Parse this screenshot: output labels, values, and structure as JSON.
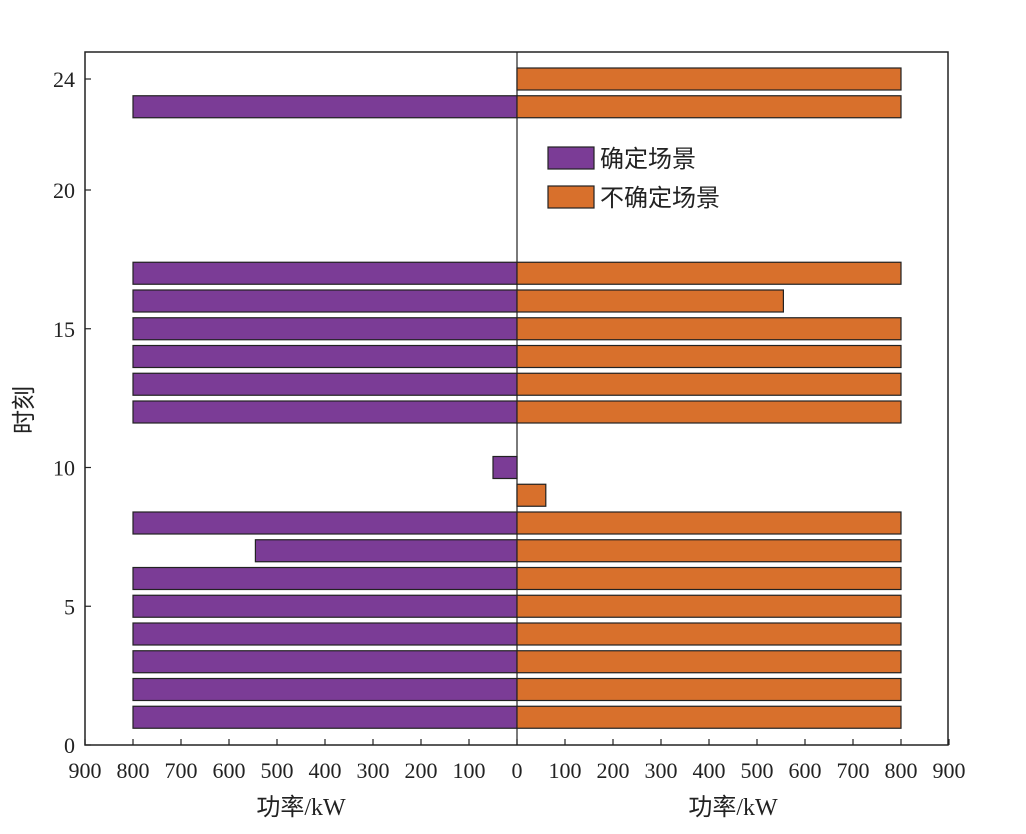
{
  "chart_data": {
    "type": "bar",
    "orientation": "horizontal-diverging",
    "xlabel_left": "功率/kW",
    "xlabel_right": "功率/kW",
    "ylabel": "时刻",
    "xlim_each_side": [
      0,
      900
    ],
    "ylim": [
      0,
      24.5
    ],
    "x_ticks_left": [
      "900",
      "800",
      "700",
      "600",
      "500",
      "400",
      "300",
      "200",
      "100",
      "0"
    ],
    "x_ticks_right": [
      "100",
      "200",
      "300",
      "400",
      "500",
      "600",
      "700",
      "800",
      "900"
    ],
    "y_ticks": [
      0,
      5,
      10,
      15,
      20,
      24
    ],
    "legend_position": "upper-center-right",
    "grid": false,
    "series": [
      {
        "name": "确定场景",
        "side": "left",
        "color": "#7b3c96",
        "points": [
          {
            "t": 1,
            "value": 800
          },
          {
            "t": 2,
            "value": 800
          },
          {
            "t": 3,
            "value": 800
          },
          {
            "t": 4,
            "value": 800
          },
          {
            "t": 5,
            "value": 800
          },
          {
            "t": 6,
            "value": 800
          },
          {
            "t": 7,
            "value": 545
          },
          {
            "t": 8,
            "value": 800
          },
          {
            "t": 10,
            "value": 50
          },
          {
            "t": 12,
            "value": 800
          },
          {
            "t": 13,
            "value": 800
          },
          {
            "t": 14,
            "value": 800
          },
          {
            "t": 15,
            "value": 800
          },
          {
            "t": 16,
            "value": 800
          },
          {
            "t": 17,
            "value": 800
          },
          {
            "t": 23,
            "value": 800
          }
        ]
      },
      {
        "name": "不确定场景",
        "side": "right",
        "color": "#d8702c",
        "points": [
          {
            "t": 1,
            "value": 800
          },
          {
            "t": 2,
            "value": 800
          },
          {
            "t": 3,
            "value": 800
          },
          {
            "t": 4,
            "value": 800
          },
          {
            "t": 5,
            "value": 800
          },
          {
            "t": 6,
            "value": 800
          },
          {
            "t": 7,
            "value": 800
          },
          {
            "t": 8,
            "value": 800
          },
          {
            "t": 9,
            "value": 60
          },
          {
            "t": 12,
            "value": 800
          },
          {
            "t": 13,
            "value": 800
          },
          {
            "t": 14,
            "value": 800
          },
          {
            "t": 15,
            "value": 800
          },
          {
            "t": 16,
            "value": 555
          },
          {
            "t": 17,
            "value": 800
          },
          {
            "t": 23,
            "value": 800
          },
          {
            "t": 24,
            "value": 800
          }
        ]
      }
    ]
  }
}
